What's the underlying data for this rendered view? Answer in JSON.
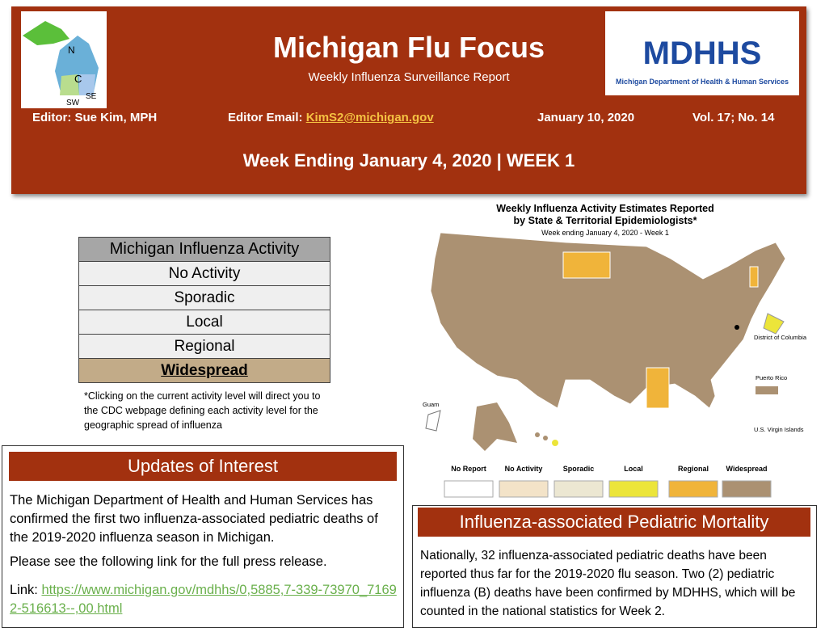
{
  "header": {
    "title": "Michigan Flu Focus",
    "subtitle": "Weekly Influenza Surveillance Report",
    "editor": "Editor: Sue Kim, MPH",
    "email_label": "Editor Email:",
    "email": "KimS2@michigan.gov",
    "date": "January 10, 2020",
    "volume": "Vol. 17; No. 14",
    "week": "Week Ending January 4, 2020 | WEEK 1",
    "region_labels": [
      "N",
      "C",
      "SW",
      "SE"
    ],
    "logo_text": "MDHHS",
    "logo_caption": "Michigan Department of Health & Human Services"
  },
  "activity": {
    "title": "Michigan Influenza Activity",
    "levels": [
      "No Activity",
      "Sporadic",
      "Local",
      "Regional",
      "Widespread"
    ],
    "note": "*Clicking on the current activity level will direct you to the CDC webpage defining each activity level for the geographic spread of influenza"
  },
  "map": {
    "title_lines": [
      "Weekly Influenza Activity Estimates Reported",
      "by State & Territorial Epidemiologists*"
    ],
    "subtitle": "Week ending January 4, 2020 - Week 1",
    "places": [
      "Guam",
      "District of Columbia",
      "Puerto Rico",
      "U.S. Virgin Islands"
    ],
    "legend": [
      {
        "label": "No Report",
        "color": "#ffffff"
      },
      {
        "label": "No Activity",
        "color": "#f3e3c8"
      },
      {
        "label": "Sporadic",
        "color": "#ece7d2"
      },
      {
        "label": "Local",
        "color": "#ece53a"
      },
      {
        "label": "Regional",
        "color": "#f0b43a"
      },
      {
        "label": "Widespread",
        "color": "#ab9172"
      }
    ]
  },
  "updates": {
    "heading": "Updates of Interest",
    "paragraphs": [
      "The Michigan Department of Health and Human Services has confirmed the first two influenza-associated pediatric deaths of the 2019-2020 influenza season in Michigan.",
      "Please see the following link for the full press release."
    ],
    "link_label": "Link:",
    "link": "https://www.michigan.gov/mdhhs/0,5885,7-339-73970_71692-516613--,00.html"
  },
  "mortality": {
    "heading": "Influenza-associated Pediatric Mortality",
    "text": "Nationally, 32 influenza-associated pediatric deaths have been reported thus far for the 2019-2020 flu season. Two (2) pediatric influenza (B) deaths have been confirmed by MDHHS, which will be counted in the national statistics for Week 2."
  }
}
